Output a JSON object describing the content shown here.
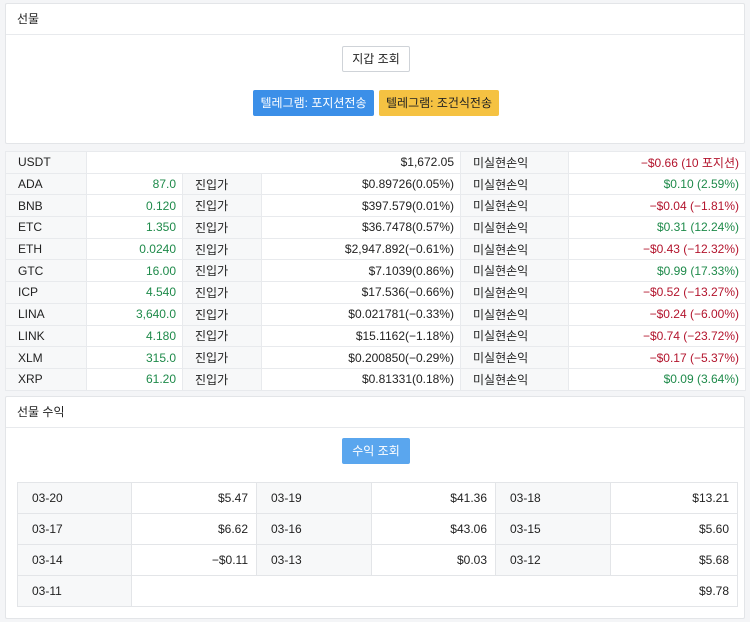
{
  "futures": {
    "title": "선물",
    "wallet_button": "지갑 조회",
    "telegram_position_button": "텔레그램: 포지션전송",
    "telegram_condition_button": "텔레그램: 조건식전송"
  },
  "usdt_row": {
    "symbol": "USDT",
    "balance": "$1,672.05",
    "pnl_label": "미실현손익",
    "pnl": "−$0.66 (10 포지션)"
  },
  "positions": [
    {
      "symbol": "ADA",
      "qty": "87.0",
      "entry_label": "진입가",
      "entry": "$0.89726(0.05%)",
      "pnl_label": "미실현손익",
      "pnl": "$0.10 (2.59%)",
      "pnl_color": "green"
    },
    {
      "symbol": "BNB",
      "qty": "0.120",
      "entry_label": "진입가",
      "entry": "$397.579(0.01%)",
      "pnl_label": "미실현손익",
      "pnl": "−$0.04 (−1.81%)",
      "pnl_color": "red"
    },
    {
      "symbol": "ETC",
      "qty": "1.350",
      "entry_label": "진입가",
      "entry": "$36.7478(0.57%)",
      "pnl_label": "미실현손익",
      "pnl": "$0.31 (12.24%)",
      "pnl_color": "green"
    },
    {
      "symbol": "ETH",
      "qty": "0.0240",
      "entry_label": "진입가",
      "entry": "$2,947.892(−0.61%)",
      "pnl_label": "미실현손익",
      "pnl": "−$0.43 (−12.32%)",
      "pnl_color": "red"
    },
    {
      "symbol": "GTC",
      "qty": "16.00",
      "entry_label": "진입가",
      "entry": "$7.1039(0.86%)",
      "pnl_label": "미실현손익",
      "pnl": "$0.99 (17.33%)",
      "pnl_color": "green"
    },
    {
      "symbol": "ICP",
      "qty": "4.540",
      "entry_label": "진입가",
      "entry": "$17.536(−0.66%)",
      "pnl_label": "미실현손익",
      "pnl": "−$0.52 (−13.27%)",
      "pnl_color": "red"
    },
    {
      "symbol": "LINA",
      "qty": "3,640.0",
      "entry_label": "진입가",
      "entry": "$0.021781(−0.33%)",
      "pnl_label": "미실현손익",
      "pnl": "−$0.24 (−6.00%)",
      "pnl_color": "red"
    },
    {
      "symbol": "LINK",
      "qty": "4.180",
      "entry_label": "진입가",
      "entry": "$15.1162(−1.18%)",
      "pnl_label": "미실현손익",
      "pnl": "−$0.74 (−23.72%)",
      "pnl_color": "red"
    },
    {
      "symbol": "XLM",
      "qty": "315.0",
      "entry_label": "진입가",
      "entry": "$0.200850(−0.29%)",
      "pnl_label": "미실현손익",
      "pnl": "−$0.17 (−5.37%)",
      "pnl_color": "red"
    },
    {
      "symbol": "XRP",
      "qty": "61.20",
      "entry_label": "진입가",
      "entry": "$0.81331(0.18%)",
      "pnl_label": "미실현손익",
      "pnl": "$0.09 (3.64%)",
      "pnl_color": "green"
    }
  ],
  "income": {
    "title": "선물 수익",
    "button": "수익 조회",
    "days": [
      {
        "date": "03-20",
        "amount": "$5.47"
      },
      {
        "date": "03-19",
        "amount": "$41.36"
      },
      {
        "date": "03-18",
        "amount": "$13.21"
      },
      {
        "date": "03-17",
        "amount": "$6.62"
      },
      {
        "date": "03-16",
        "amount": "$43.06"
      },
      {
        "date": "03-15",
        "amount": "$5.60"
      },
      {
        "date": "03-14",
        "amount": "−$0.11"
      },
      {
        "date": "03-13",
        "amount": "$0.03"
      },
      {
        "date": "03-12",
        "amount": "$5.68"
      },
      {
        "date": "03-11",
        "amount": "$9.78"
      }
    ]
  },
  "colors": {
    "green": "#1e8a4a",
    "red": "#b3142d",
    "primary": "#3b8fe8",
    "warning": "#f5c242"
  }
}
